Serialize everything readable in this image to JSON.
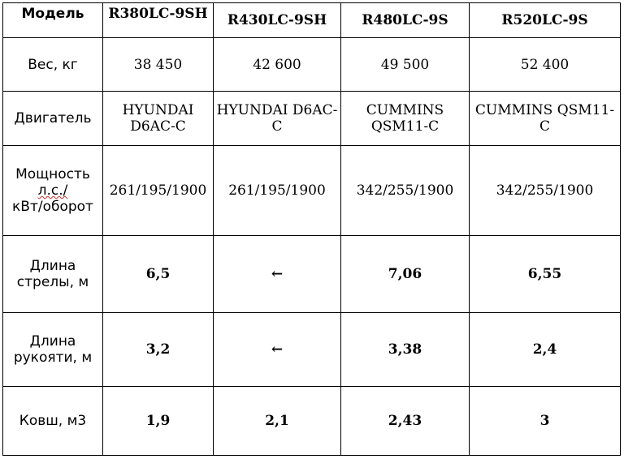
{
  "table": {
    "header": {
      "label": "Модель",
      "models": [
        "R380LC-9SH",
        "R430LC-9SH",
        "R480LC-9S",
        "R520LC-9S"
      ]
    },
    "rows": [
      {
        "label": "Вес, кг",
        "values": [
          "38 450",
          "42 600",
          "49 500",
          "52 400"
        ]
      },
      {
        "label": "Двигатель",
        "values": [
          "HYUNDAI D6AC-C",
          "HYUNDAI D6AC-C",
          "CUMMINS QSM11-C",
          "CUMMINS QSM11-C"
        ]
      },
      {
        "label_lines": [
          "Мощность",
          "л.с./",
          "кВт/оборот"
        ],
        "values": [
          "261/195/1900",
          "261/195/1900",
          "342/255/1900",
          "342/255/1900"
        ]
      },
      {
        "label_lines": [
          "Длина",
          "стрелы, м"
        ],
        "values": [
          "6,5",
          "←",
          "7,06",
          "6,55"
        ]
      },
      {
        "label_lines": [
          "Длина",
          "рукояти, м"
        ],
        "values": [
          "3,2",
          "←",
          "3,38",
          "2,4"
        ]
      },
      {
        "label": "Ковш, м3",
        "values": [
          "1,9",
          "2,1",
          "2,43",
          "3"
        ]
      }
    ]
  }
}
